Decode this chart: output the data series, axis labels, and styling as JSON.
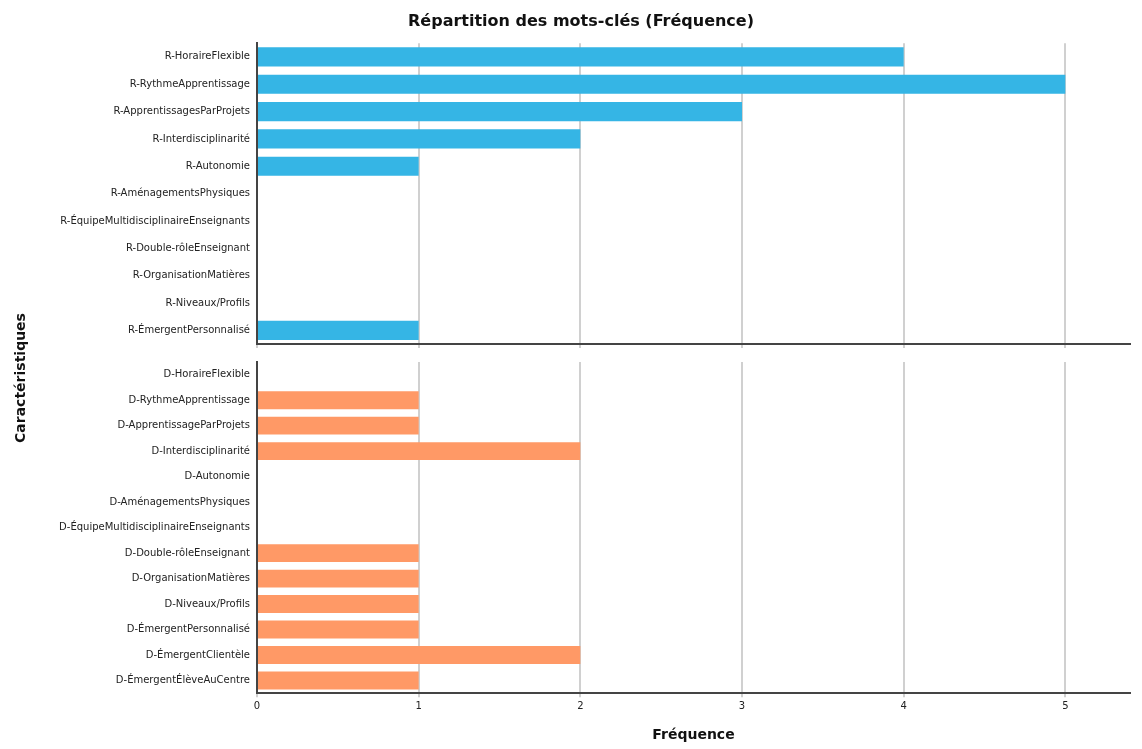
{
  "chart_data": [
    {
      "type": "bar",
      "orientation": "horizontal",
      "title": "Répartition des mots-clés (Fréquence)",
      "ylabel": "Caractéristiques",
      "categories": [
        "R-HoraireFlexible",
        "R-RythmeApprentissage",
        "R-ApprentissagesParProjets",
        "R-Interdisciplinarité",
        "R-Autonomie",
        "R-AménagementsPhysiques",
        "R-ÉquipeMultidisciplinaireEnseignants",
        "R-Double-rôleEnseignant",
        "R-OrganisationMatières",
        "R-Niveaux/Profils",
        "R-ÉmergentPersonnalisé"
      ],
      "values": [
        4,
        5,
        3,
        2,
        1,
        0,
        0,
        0,
        0,
        0,
        1
      ],
      "color": "#35b5e5",
      "xlim": [
        0,
        5.4
      ],
      "xticks": [
        0,
        1,
        2,
        3,
        4,
        5
      ],
      "grid": "x",
      "tick_labels": "y"
    },
    {
      "type": "bar",
      "orientation": "horizontal",
      "xlabel": "Fréquence",
      "categories": [
        "D-HoraireFlexible",
        "D-RythmeApprentissage",
        "D-ApprentissageParProjets",
        "D-Interdisciplinarité",
        "D-Autonomie",
        "D-AménagementsPhysiques",
        "D-ÉquipeMultidisciplinaireEnseignants",
        "D-Double-rôleEnseignant",
        "D-OrganisationMatières",
        "D-Niveaux/Profils",
        "D-ÉmergentPersonnalisé",
        "D-ÉmergentClientèle",
        "D-ÉmergentÉlèveAuCentre"
      ],
      "values": [
        0,
        1,
        1,
        2,
        0,
        0,
        0,
        1,
        1,
        1,
        1,
        2,
        1
      ],
      "color": "#ff9966",
      "xlim": [
        0,
        5.4
      ],
      "xticks": [
        0,
        1,
        2,
        3,
        4,
        5
      ],
      "grid": "x"
    }
  ]
}
